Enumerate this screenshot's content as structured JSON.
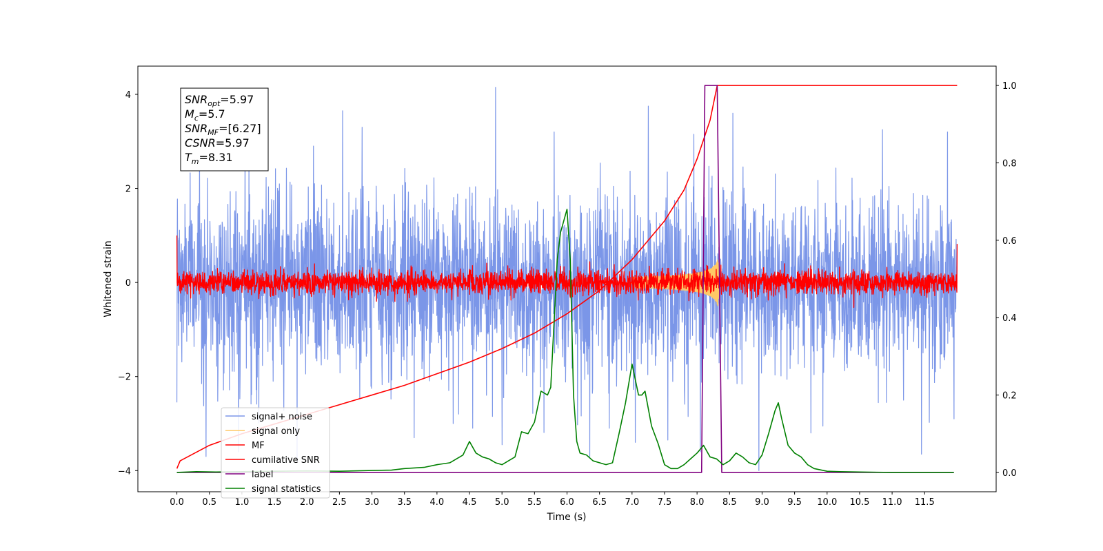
{
  "chart_data": {
    "type": "line",
    "title": "",
    "xlabel": "Time (s)",
    "ylabel": "Whitened strain",
    "xlim": [
      -0.6,
      12.6
    ],
    "ylim_left": [
      -4.45,
      4.6
    ],
    "ylim_right": [
      -0.05,
      1.05
    ],
    "x_ticks": [
      0.0,
      0.5,
      1.0,
      1.5,
      2.0,
      2.5,
      3.0,
      3.5,
      4.0,
      4.5,
      5.0,
      5.5,
      6.0,
      6.5,
      7.0,
      7.5,
      8.0,
      8.5,
      9.0,
      9.5,
      10.0,
      10.5,
      11.0,
      11.5
    ],
    "x_tick_labels": [
      "0.0",
      "0.5",
      "1.0",
      "1.5",
      "2.0",
      "2.5",
      "3.0",
      "3.5",
      "4.0",
      "4.5",
      "5.0",
      "5.5",
      "6.0",
      "6.5",
      "7.0",
      "7.5",
      "8.0",
      "8.5",
      "9.0",
      "9.5",
      "10.0",
      "10.5",
      "11.0",
      "11.5"
    ],
    "y_ticks_left": [
      -4,
      -2,
      0,
      2,
      4
    ],
    "y_tick_labels_left": [
      "−4",
      "−2",
      "0",
      "2",
      "4"
    ],
    "y_ticks_right": [
      0.0,
      0.2,
      0.4,
      0.6,
      0.8,
      1.0
    ],
    "y_tick_labels_right": [
      "0.0",
      "0.2",
      "0.4",
      "0.6",
      "0.8",
      "1.0"
    ],
    "grid": false,
    "legend_position": "lower-left",
    "annotation": [
      {
        "base": "SNR",
        "sub": "opt",
        "rest": "=5.97"
      },
      {
        "base": "M",
        "sub": "c",
        "rest": "=5.7"
      },
      {
        "base": "SNR",
        "sub": "MF",
        "rest": "=[6.27]"
      },
      {
        "base": "CSNR",
        "sub": "",
        "rest": "=5.97"
      },
      {
        "base": "T",
        "sub": "m",
        "rest": "=8.31"
      }
    ],
    "series": [
      {
        "name": "signal+ noise",
        "color": "#7b96e8",
        "axis": "left",
        "style": "noise",
        "x_range": [
          0,
          12
        ],
        "sigma": 0.95,
        "peaks": [
          [
            0.0,
            -2.55
          ],
          [
            0.35,
            2.6
          ],
          [
            0.45,
            -3.7
          ],
          [
            0.95,
            -3.6
          ],
          [
            1.05,
            3.0
          ],
          [
            1.85,
            -3.8
          ],
          [
            2.1,
            2.9
          ],
          [
            2.55,
            3.65
          ],
          [
            2.85,
            3.3
          ],
          [
            3.65,
            -3.3
          ],
          [
            4.25,
            -3.0
          ],
          [
            4.55,
            -3.1
          ],
          [
            4.9,
            4.15
          ],
          [
            5.0,
            -3.45
          ],
          [
            5.8,
            3.2
          ],
          [
            6.35,
            -3.7
          ],
          [
            6.65,
            -3.1
          ],
          [
            7.05,
            -3.4
          ],
          [
            7.25,
            3.75
          ],
          [
            7.55,
            -3.35
          ],
          [
            7.95,
            3.15
          ],
          [
            8.05,
            -3.6
          ],
          [
            8.55,
            3.6
          ],
          [
            8.95,
            -4.0
          ],
          [
            9.75,
            -3.2
          ],
          [
            10.85,
            3.25
          ],
          [
            11.45,
            -3.65
          ],
          [
            11.85,
            3.2
          ],
          [
            11.95,
            -2.9
          ]
        ]
      },
      {
        "name": "signal only",
        "color": "#ffc966",
        "axis": "left",
        "style": "chirp",
        "x_range": [
          7.0,
          8.35
        ],
        "amp_max": 0.75
      },
      {
        "name": "MF",
        "color": "#ff0000",
        "axis": "left",
        "style": "noise",
        "x_range": [
          0,
          12
        ],
        "sigma": 0.13,
        "start_value": 1.0,
        "end_value": 0.82
      },
      {
        "name": "cumilative SNR",
        "color": "#ff0000",
        "axis": "right",
        "style": "curve",
        "x": [
          0.0,
          0.05,
          0.5,
          1.0,
          1.5,
          2.0,
          2.5,
          3.0,
          3.5,
          4.0,
          4.5,
          5.0,
          5.5,
          6.0,
          6.5,
          7.0,
          7.5,
          7.8,
          8.0,
          8.2,
          8.31,
          12.0
        ],
        "y": [
          0.01,
          0.03,
          0.07,
          0.1,
          0.125,
          0.15,
          0.175,
          0.2,
          0.225,
          0.255,
          0.285,
          0.32,
          0.36,
          0.41,
          0.47,
          0.55,
          0.65,
          0.73,
          0.81,
          0.91,
          1.0,
          1.0
        ]
      },
      {
        "name": "label",
        "color": "#800080",
        "axis": "right",
        "style": "curve",
        "x": [
          0.0,
          8.07,
          8.12,
          8.31,
          8.38,
          11.95
        ],
        "y": [
          0.0,
          0.0,
          1.0,
          1.0,
          0.0,
          0.0
        ]
      },
      {
        "name": "signal statistics",
        "color": "#008000",
        "axis": "right",
        "style": "curve",
        "x": [
          0.0,
          0.3,
          0.6,
          1.0,
          1.5,
          2.0,
          2.5,
          3.0,
          3.3,
          3.5,
          3.8,
          4.0,
          4.2,
          4.4,
          4.5,
          4.6,
          4.7,
          4.8,
          4.9,
          5.0,
          5.2,
          5.3,
          5.4,
          5.5,
          5.6,
          5.7,
          5.75,
          5.85,
          5.9,
          6.0,
          6.05,
          6.1,
          6.15,
          6.2,
          6.3,
          6.4,
          6.5,
          6.6,
          6.7,
          6.8,
          6.9,
          7.0,
          7.1,
          7.15,
          7.2,
          7.3,
          7.4,
          7.5,
          7.6,
          7.7,
          7.8,
          7.9,
          8.0,
          8.1,
          8.2,
          8.3,
          8.4,
          8.5,
          8.6,
          8.7,
          8.8,
          8.9,
          9.0,
          9.1,
          9.2,
          9.25,
          9.3,
          9.4,
          9.5,
          9.6,
          9.7,
          9.8,
          10.0,
          10.2,
          10.5,
          11.0,
          11.95
        ],
        "y": [
          0.0,
          0.002,
          0.001,
          0.002,
          0.003,
          0.004,
          0.003,
          0.005,
          0.006,
          0.01,
          0.013,
          0.02,
          0.025,
          0.045,
          0.08,
          0.05,
          0.04,
          0.035,
          0.025,
          0.02,
          0.04,
          0.105,
          0.1,
          0.13,
          0.21,
          0.2,
          0.22,
          0.55,
          0.62,
          0.68,
          0.55,
          0.2,
          0.08,
          0.05,
          0.045,
          0.03,
          0.025,
          0.02,
          0.025,
          0.1,
          0.18,
          0.28,
          0.2,
          0.2,
          0.21,
          0.12,
          0.075,
          0.02,
          0.01,
          0.01,
          0.02,
          0.035,
          0.05,
          0.07,
          0.04,
          0.035,
          0.02,
          0.03,
          0.05,
          0.04,
          0.025,
          0.02,
          0.045,
          0.1,
          0.16,
          0.18,
          0.14,
          0.07,
          0.05,
          0.04,
          0.02,
          0.01,
          0.003,
          0.002,
          0.001,
          0.0,
          0.0
        ]
      }
    ]
  }
}
